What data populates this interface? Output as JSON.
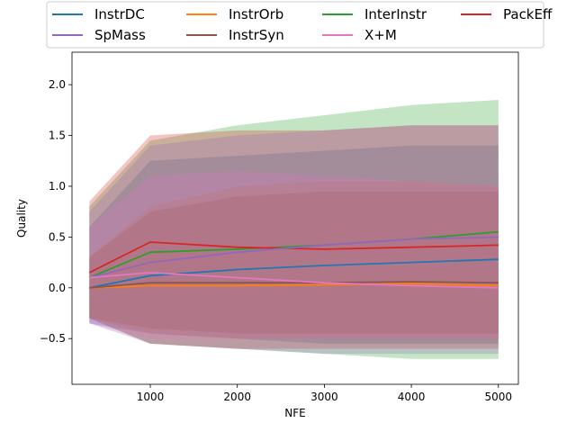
{
  "chart_data": {
    "type": "line",
    "title": "",
    "xlabel": "NFE",
    "ylabel": "Quality",
    "xlim": [
      100,
      5230
    ],
    "ylim": [
      -0.95,
      2.32
    ],
    "xticks": [
      1000,
      2000,
      3000,
      4000,
      5000
    ],
    "xtick_labels": [
      "1000",
      "2000",
      "3000",
      "4000",
      "5000"
    ],
    "yticks": [
      -0.5,
      0.0,
      0.5,
      1.0,
      1.5,
      2.0
    ],
    "ytick_labels": [
      "−0.5",
      "0.0",
      "0.5",
      "1.0",
      "1.5",
      "2.0"
    ],
    "grid": false,
    "legend": {
      "placement": "top-center-outside",
      "columns": 4
    },
    "x": [
      300,
      1000,
      2000,
      3000,
      4000,
      5000
    ],
    "series": [
      {
        "name": "InstrDC",
        "color": "#1f77b4",
        "values": [
          0.0,
          0.12,
          0.18,
          0.22,
          0.25,
          0.28
        ],
        "band": [
          [
            -0.35,
            0.6
          ],
          [
            -0.45,
            1.25
          ],
          [
            -0.5,
            1.3
          ],
          [
            -0.55,
            1.35
          ],
          [
            -0.55,
            1.4
          ],
          [
            -0.55,
            1.4
          ]
        ]
      },
      {
        "name": "InstrOrb",
        "color": "#ff7f0e",
        "values": [
          0.0,
          0.02,
          0.02,
          0.03,
          0.04,
          0.02
        ],
        "band": [
          [
            -0.3,
            0.3
          ],
          [
            -0.45,
            0.8
          ],
          [
            -0.5,
            1.0
          ],
          [
            -0.5,
            1.05
          ],
          [
            -0.5,
            1.05
          ],
          [
            -0.5,
            1.0
          ]
        ]
      },
      {
        "name": "InterInstr",
        "color": "#2ca02c",
        "values": [
          0.1,
          0.35,
          0.38,
          0.42,
          0.48,
          0.55
        ],
        "band": [
          [
            -0.3,
            0.8
          ],
          [
            -0.55,
            1.45
          ],
          [
            -0.6,
            1.6
          ],
          [
            -0.65,
            1.7
          ],
          [
            -0.7,
            1.8
          ],
          [
            -0.7,
            1.85
          ]
        ]
      },
      {
        "name": "PackEff",
        "color": "#d62728",
        "values": [
          0.15,
          0.45,
          0.4,
          0.38,
          0.4,
          0.42
        ],
        "band": [
          [
            -0.3,
            0.85
          ],
          [
            -0.55,
            1.5
          ],
          [
            -0.6,
            1.55
          ],
          [
            -0.6,
            1.55
          ],
          [
            -0.6,
            1.6
          ],
          [
            -0.6,
            1.6
          ]
        ]
      },
      {
        "name": "SpMass",
        "color": "#9467bd",
        "values": [
          0.1,
          0.25,
          0.35,
          0.42,
          0.48,
          0.5
        ],
        "band": [
          [
            -0.35,
            0.75
          ],
          [
            -0.55,
            1.4
          ],
          [
            -0.6,
            1.5
          ],
          [
            -0.65,
            1.55
          ],
          [
            -0.65,
            1.6
          ],
          [
            -0.65,
            1.6
          ]
        ]
      },
      {
        "name": "InstrSyn",
        "color": "#8c564b",
        "values": [
          0.0,
          0.05,
          0.05,
          0.05,
          0.06,
          0.05
        ],
        "band": [
          [
            -0.3,
            0.3
          ],
          [
            -0.4,
            0.75
          ],
          [
            -0.45,
            0.9
          ],
          [
            -0.45,
            0.95
          ],
          [
            -0.45,
            0.95
          ],
          [
            -0.45,
            0.95
          ]
        ]
      },
      {
        "name": "X+M",
        "color": "#e377c2",
        "values": [
          0.1,
          0.15,
          0.1,
          0.05,
          0.02,
          0.0
        ],
        "band": [
          [
            -0.35,
            0.6
          ],
          [
            -0.5,
            1.1
          ],
          [
            -0.5,
            1.15
          ],
          [
            -0.5,
            1.1
          ],
          [
            -0.5,
            1.05
          ],
          [
            -0.5,
            1.0
          ]
        ]
      }
    ]
  }
}
